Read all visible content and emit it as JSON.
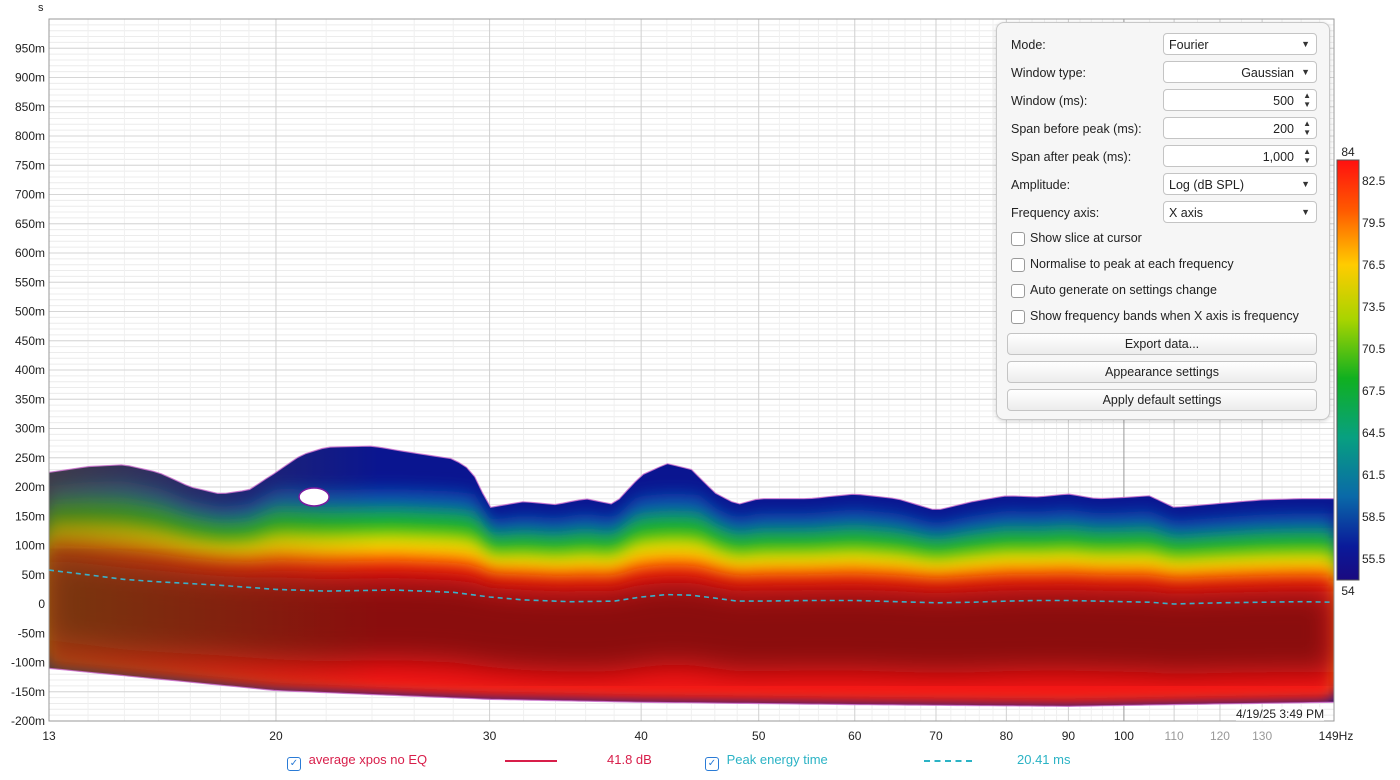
{
  "chart_data": {
    "type": "heatmap",
    "title": "",
    "xlabel": "Hz",
    "ylabel": "s",
    "x_scale": "log",
    "xlim": [
      13,
      149
    ],
    "ylim": [
      -200,
      1000
    ],
    "x_ticks": [
      {
        "value": 13,
        "label": "13"
      },
      {
        "value": 20,
        "label": "20"
      },
      {
        "value": 30,
        "label": "30"
      },
      {
        "value": 40,
        "label": "40"
      },
      {
        "value": 50,
        "label": "50"
      },
      {
        "value": 60,
        "label": "60"
      },
      {
        "value": 70,
        "label": "70"
      },
      {
        "value": 80,
        "label": "80"
      },
      {
        "value": 90,
        "label": "90"
      },
      {
        "value": 100,
        "label": "100"
      },
      {
        "value": 110,
        "label": "110"
      },
      {
        "value": 120,
        "label": "120"
      },
      {
        "value": 130,
        "label": "130"
      },
      {
        "value": 149,
        "label": "149Hz"
      }
    ],
    "y_ticks": [
      {
        "value": 950,
        "label": "950m"
      },
      {
        "value": 900,
        "label": "900m"
      },
      {
        "value": 850,
        "label": "850m"
      },
      {
        "value": 800,
        "label": "800m"
      },
      {
        "value": 750,
        "label": "750m"
      },
      {
        "value": 700,
        "label": "700m"
      },
      {
        "value": 650,
        "label": "650m"
      },
      {
        "value": 600,
        "label": "600m"
      },
      {
        "value": 550,
        "label": "550m"
      },
      {
        "value": 500,
        "label": "500m"
      },
      {
        "value": 450,
        "label": "450m"
      },
      {
        "value": 400,
        "label": "400m"
      },
      {
        "value": 350,
        "label": "350m"
      },
      {
        "value": 300,
        "label": "300m"
      },
      {
        "value": 250,
        "label": "250m"
      },
      {
        "value": 200,
        "label": "200m"
      },
      {
        "value": 150,
        "label": "150m"
      },
      {
        "value": 100,
        "label": "100m"
      },
      {
        "value": 50,
        "label": "50m"
      },
      {
        "value": 0,
        "label": "0"
      },
      {
        "value": -50,
        "label": "-50m"
      },
      {
        "value": -100,
        "label": "-100m"
      },
      {
        "value": -150,
        "label": "-150m"
      },
      {
        "value": -200,
        "label": "-200m"
      }
    ],
    "y_unit_label": "s",
    "colorbar": {
      "min": 54,
      "max": 84,
      "min_label": "54",
      "max_label": "84",
      "ticks": [
        "82.5",
        "79.5",
        "76.5",
        "73.5",
        "70.5",
        "67.5",
        "64.5",
        "61.5",
        "58.5",
        "55.5"
      ],
      "tick_values": [
        82.5,
        79.5,
        76.5,
        73.5,
        70.5,
        67.5,
        64.5,
        61.5,
        58.5,
        55.5
      ]
    },
    "upper_envelope": {
      "x": [
        13,
        14,
        15,
        16,
        17,
        18,
        19,
        20,
        21,
        22,
        24,
        26,
        28,
        29,
        30,
        32,
        34,
        36,
        38,
        40,
        42,
        44,
        46,
        48,
        50,
        55,
        60,
        65,
        70,
        75,
        80,
        85,
        90,
        95,
        100,
        105,
        110,
        120,
        130,
        140,
        149
      ],
      "y": [
        225,
        235,
        238,
        225,
        200,
        188,
        195,
        225,
        255,
        268,
        270,
        258,
        248,
        228,
        165,
        175,
        170,
        180,
        170,
        220,
        240,
        230,
        190,
        170,
        180,
        180,
        188,
        180,
        160,
        175,
        185,
        183,
        188,
        180,
        182,
        185,
        165,
        172,
        178,
        180,
        180
      ]
    },
    "lower_envelope": {
      "x": [
        13,
        20,
        30,
        40,
        60,
        90,
        110,
        149
      ],
      "y": [
        -110,
        -148,
        -163,
        -168,
        -172,
        -175,
        -172,
        -168
      ]
    },
    "series": [
      {
        "name": "Peak energy time",
        "color": "#3ab0c9",
        "style": "dashed",
        "x": [
          13,
          14,
          15,
          16,
          18,
          20,
          22,
          25,
          28,
          30,
          32,
          35,
          38,
          40,
          42,
          44,
          46,
          48,
          50,
          55,
          60,
          65,
          70,
          75,
          80,
          85,
          90,
          95,
          100,
          105,
          110,
          120,
          130,
          140,
          149
        ],
        "y": [
          58,
          50,
          42,
          38,
          32,
          25,
          22,
          24,
          20,
          12,
          7,
          4,
          5,
          12,
          16,
          15,
          10,
          5,
          5,
          6,
          6,
          4,
          2,
          3,
          5,
          6,
          6,
          5,
          4,
          3,
          0,
          2,
          3,
          4,
          3
        ]
      }
    ],
    "timestamp": "4/19/25 3:49 PM",
    "grid": true
  },
  "legend": {
    "item1": {
      "name": "average xpos no EQ",
      "value": "41.8 dB",
      "color": "#d81e4a"
    },
    "item2": {
      "name": "Peak energy time",
      "value": "20.41 ms",
      "color": "#2bb3c5"
    }
  },
  "panel": {
    "mode_label": "Mode:",
    "mode_value": "Fourier",
    "window_type_label": "Window type:",
    "window_type_value": "Gaussian",
    "window_ms_label": "Window (ms):",
    "window_ms_value": "500",
    "span_before_label": "Span before peak (ms):",
    "span_before_value": "200",
    "span_after_label": "Span after peak (ms):",
    "span_after_value": "1,000",
    "amplitude_label": "Amplitude:",
    "amplitude_value": "Log (dB SPL)",
    "freq_axis_label": "Frequency axis:",
    "freq_axis_value": "X axis",
    "chk_slice": "Show slice at cursor",
    "chk_normalise": "Normalise to peak at each frequency",
    "chk_autogen": "Auto generate on settings change",
    "chk_bands": "Show frequency bands when X axis is frequency",
    "btn_export": "Export data...",
    "btn_appearance": "Appearance settings",
    "btn_defaults": "Apply default settings"
  }
}
